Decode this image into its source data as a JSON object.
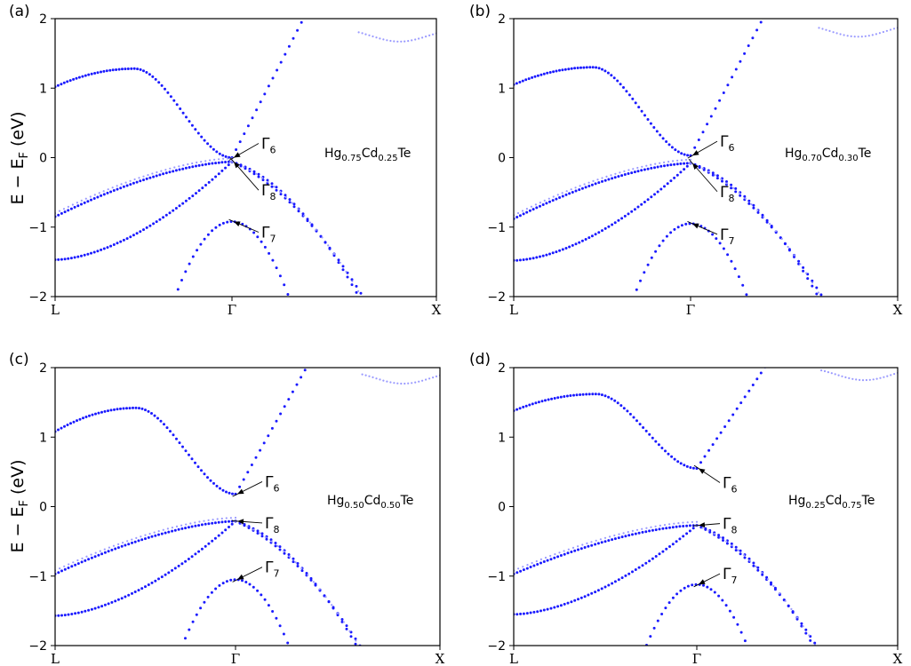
{
  "figure": {
    "y_label_main": "E − E",
    "y_label_sub": "F",
    "y_label_unit": " (eV)"
  },
  "chart_data": [
    {
      "type": "scatter",
      "panel_label": "(a)",
      "composition": {
        "hg": "Hg",
        "x_hg": "0.75",
        "cd": "Cd",
        "x_cd": "0.25",
        "te": "Te"
      },
      "x_ticks": [
        "L",
        "Γ",
        "X"
      ],
      "y_ticks": [
        "2",
        "1",
        "0",
        "−1",
        "−2"
      ],
      "ylim": [
        -2,
        2
      ],
      "grid": false,
      "annotations": [
        {
          "symbol": "Γ",
          "sub": "6",
          "energy": 0.0
        },
        {
          "symbol": "Γ",
          "sub": "8",
          "energy": -0.06
        },
        {
          "symbol": "Γ",
          "sub": "7",
          "energy": -0.92
        }
      ],
      "bands": {
        "conduction": {
          "gamma": 0.0,
          "L": 1.02,
          "L_peak": 1.28,
          "X": 1.75
        },
        "heavy_hole": {
          "gamma": -0.06,
          "L": -0.85
        },
        "light_hole": {
          "gamma": -0.06,
          "L": -1.47
        },
        "split_off": {
          "gamma": -0.92
        }
      }
    },
    {
      "type": "scatter",
      "panel_label": "(b)",
      "composition": {
        "hg": "Hg",
        "x_hg": "0.70",
        "cd": "Cd",
        "x_cd": "0.30",
        "te": "Te"
      },
      "x_ticks": [
        "L",
        "Γ",
        "X"
      ],
      "y_ticks": [
        "2",
        "1",
        "0",
        "−1",
        "−2"
      ],
      "ylim": [
        -2,
        2
      ],
      "grid": false,
      "annotations": [
        {
          "symbol": "Γ",
          "sub": "6",
          "energy": 0.03
        },
        {
          "symbol": "Γ",
          "sub": "8",
          "energy": -0.08
        },
        {
          "symbol": "Γ",
          "sub": "7",
          "energy": -0.95
        }
      ],
      "bands": {
        "conduction": {
          "gamma": 0.03,
          "L": 1.05,
          "L_peak": 1.3,
          "X": 1.82
        },
        "heavy_hole": {
          "gamma": -0.08,
          "L": -0.88
        },
        "light_hole": {
          "gamma": -0.08,
          "L": -1.48
        },
        "split_off": {
          "gamma": -0.95
        }
      }
    },
    {
      "type": "scatter",
      "panel_label": "(c)",
      "composition": {
        "hg": "Hg",
        "x_hg": "0.50",
        "cd": "Cd",
        "x_cd": "0.50",
        "te": "Te"
      },
      "x_ticks": [
        "L",
        "Γ",
        "X"
      ],
      "y_ticks": [
        "2",
        "1",
        "0",
        "−1",
        "−2"
      ],
      "ylim": [
        -2,
        2
      ],
      "grid": false,
      "annotations": [
        {
          "symbol": "Γ",
          "sub": "6",
          "energy": 0.18
        },
        {
          "symbol": "Γ",
          "sub": "8",
          "energy": -0.21
        },
        {
          "symbol": "Γ",
          "sub": "7",
          "energy": -1.05
        }
      ],
      "bands": {
        "conduction": {
          "gamma": 0.18,
          "L": 1.08,
          "L_peak": 1.42,
          "X": 1.85
        },
        "heavy_hole": {
          "gamma": -0.21,
          "L": -0.97
        },
        "light_hole": {
          "gamma": -0.21,
          "L": -1.57
        },
        "split_off": {
          "gamma": -1.05
        }
      }
    },
    {
      "type": "scatter",
      "panel_label": "(d)",
      "composition": {
        "hg": "Hg",
        "x_hg": "0.25",
        "cd": "Cd",
        "x_cd": "0.75",
        "te": "Te"
      },
      "x_ticks": [
        "L",
        "Γ",
        "X"
      ],
      "y_ticks": [
        "2",
        "1",
        "0",
        "−1",
        "−2"
      ],
      "ylim": [
        -2,
        2
      ],
      "grid": false,
      "annotations": [
        {
          "symbol": "Γ",
          "sub": "6",
          "energy": 0.55
        },
        {
          "symbol": "Γ",
          "sub": "8",
          "energy": -0.27
        },
        {
          "symbol": "Γ",
          "sub": "7",
          "energy": -1.12
        }
      ],
      "bands": {
        "conduction": {
          "gamma": 0.55,
          "L": 1.38,
          "L_peak": 1.62,
          "X": 1.9
        },
        "heavy_hole": {
          "gamma": -0.27,
          "L": -0.97
        },
        "light_hole": {
          "gamma": -0.27,
          "L": -1.55
        },
        "split_off": {
          "gamma": -1.12
        }
      }
    }
  ],
  "colors": {
    "band_dots": "#1a1aff",
    "band_dots_faint": "#9a9aff",
    "axes": "#000000"
  }
}
